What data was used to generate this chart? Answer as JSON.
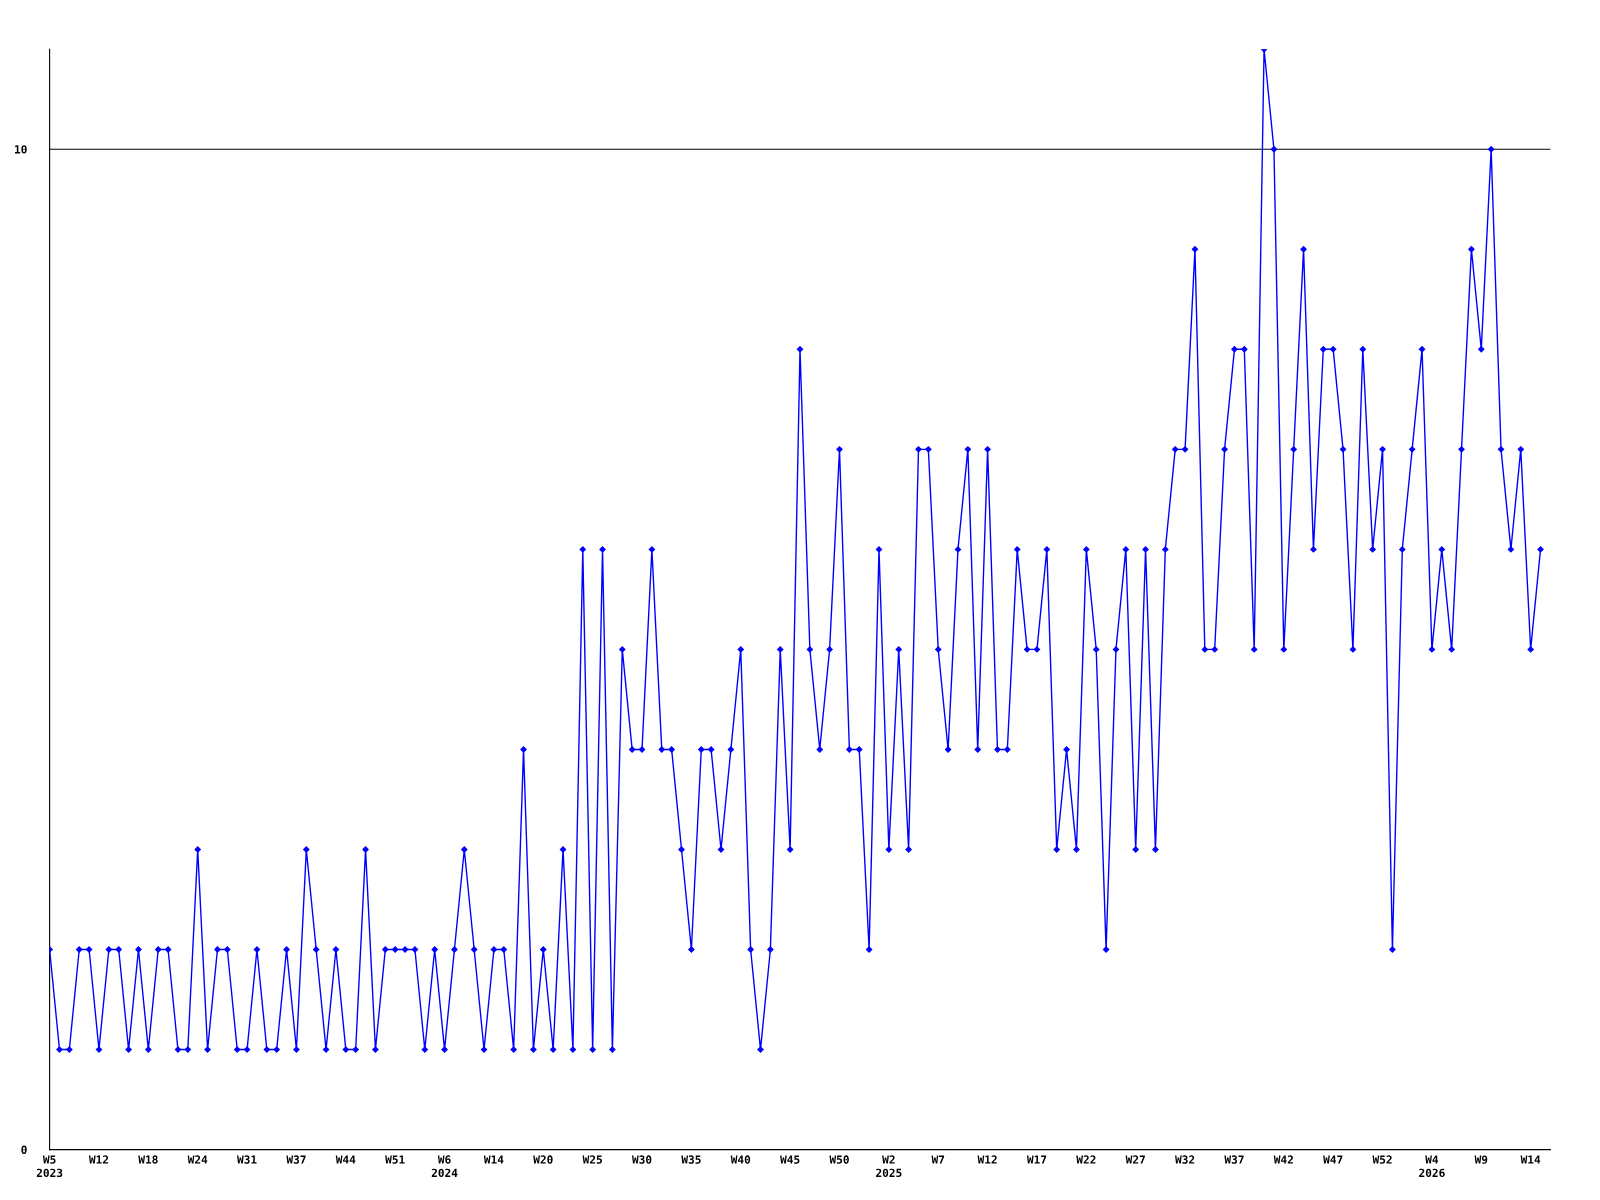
{
  "chart_data": {
    "type": "line",
    "categories": [
      "W5\n2023",
      null,
      null,
      null,
      null,
      "W12",
      null,
      null,
      null,
      null,
      "W18",
      null,
      null,
      null,
      null,
      "W24",
      null,
      null,
      null,
      null,
      "W31",
      null,
      null,
      null,
      null,
      "W37",
      null,
      null,
      null,
      null,
      "W44",
      null,
      null,
      null,
      null,
      "W51",
      null,
      null,
      null,
      null,
      "W6\n2024",
      null,
      null,
      null,
      null,
      "W14",
      null,
      null,
      null,
      null,
      "W20",
      null,
      null,
      null,
      null,
      "W25",
      null,
      null,
      null,
      null,
      "W30",
      null,
      null,
      null,
      null,
      "W35",
      null,
      null,
      null,
      null,
      "W40",
      null,
      null,
      null,
      null,
      "W45",
      null,
      null,
      null,
      null,
      "W50",
      null,
      null,
      null,
      null,
      "W2\n2025",
      null,
      null,
      null,
      null,
      "W7",
      null,
      null,
      null,
      null,
      "W12",
      null,
      null,
      null,
      null,
      "W17",
      null,
      null,
      null,
      null,
      "W22",
      null,
      null,
      null,
      null,
      "W27",
      null,
      null,
      null,
      null,
      "W32",
      null,
      null,
      null,
      null,
      "W37",
      null,
      null,
      null,
      null,
      "W42",
      null,
      null,
      null,
      null,
      "W47",
      null,
      null,
      null,
      null,
      "W52",
      null,
      null,
      null,
      null,
      "W4\n2026",
      null,
      null,
      null,
      null,
      "W9",
      null,
      null,
      null,
      null,
      "W14",
      null
    ],
    "series": [
      {
        "color": "#0000ff",
        "values": [
          2,
          1,
          1,
          2,
          2,
          1,
          2,
          2,
          1,
          2,
          1,
          2,
          2,
          1,
          1,
          3,
          1,
          2,
          2,
          1,
          1,
          2,
          1,
          1,
          2,
          1,
          3,
          2,
          1,
          2,
          1,
          1,
          3,
          1,
          2,
          2,
          2,
          2,
          1,
          2,
          1,
          2,
          3,
          2,
          1,
          2,
          2,
          1,
          4,
          1,
          2,
          1,
          3,
          1,
          6,
          1,
          6,
          1,
          5,
          4,
          4,
          6,
          4,
          4,
          3,
          2,
          4,
          4,
          3,
          4,
          5,
          2,
          1,
          2,
          5,
          3,
          8,
          5,
          4,
          5,
          7,
          4,
          4,
          2,
          6,
          3,
          5,
          3,
          7,
          7,
          5,
          4,
          6,
          7,
          4,
          7,
          4,
          4,
          6,
          5,
          5,
          6,
          3,
          4,
          3,
          6,
          5,
          2,
          5,
          6,
          3,
          6,
          3,
          6,
          7,
          7,
          9,
          5,
          5,
          7,
          8,
          8,
          5,
          11,
          10,
          5,
          7,
          9,
          6,
          8,
          8,
          7,
          5,
          8,
          6,
          7,
          2,
          6,
          7,
          8,
          5,
          6,
          5,
          7,
          9,
          8,
          10,
          7,
          6,
          7,
          5,
          6
        ]
      }
    ],
    "ylim": [
      0,
      11
    ],
    "yticks": [
      0,
      10
    ],
    "grid": "y",
    "marker": "diamond",
    "line_style": "solid"
  }
}
